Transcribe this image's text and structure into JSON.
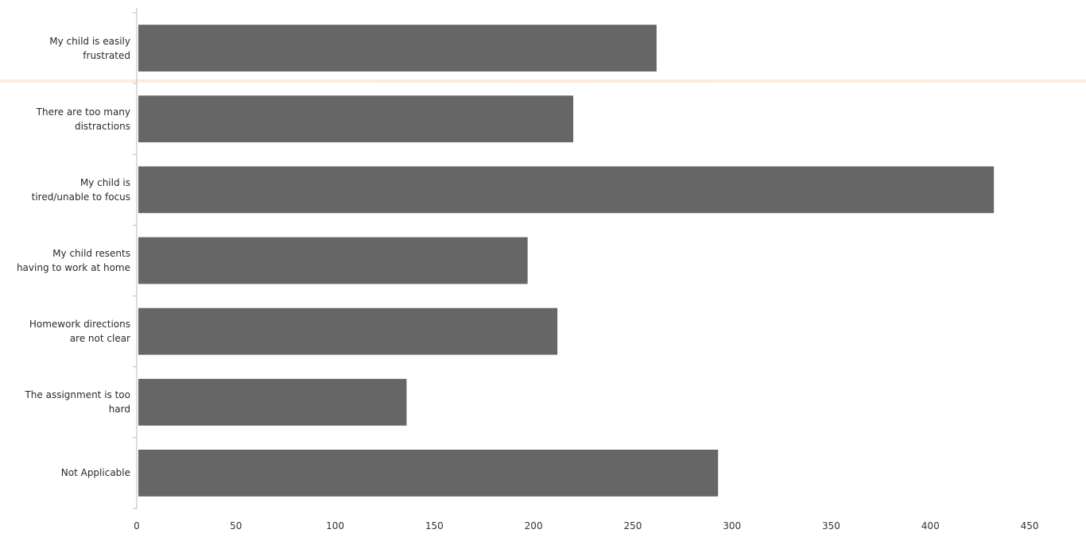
{
  "chart_data": {
    "type": "bar",
    "orientation": "horizontal",
    "categories": [
      "My child is easily frustrated",
      "There are too many distractions",
      "My child is tired/unable to focus",
      "My child resents having to work at home",
      "Homework directions are not clear",
      "The assignment is too hard",
      "Not Applicable"
    ],
    "category_labels": [
      [
        "My child is easily",
        "frustrated"
      ],
      [
        "There are too many",
        "distractions"
      ],
      [
        "My child is",
        "tired/unable to focus"
      ],
      [
        "My child resents",
        "having to work at home"
      ],
      [
        "Homework directions",
        "are not clear"
      ],
      [
        "The assignment is too",
        "hard"
      ],
      [
        "Not Applicable"
      ]
    ],
    "values": [
      262,
      220,
      432,
      197,
      212,
      136,
      293
    ],
    "xlim": [
      0,
      460
    ],
    "xticks": [
      0,
      50,
      100,
      150,
      200,
      250,
      300,
      350,
      400,
      450
    ],
    "title": "",
    "xlabel": "",
    "ylabel": "",
    "grid": false,
    "legend": "none",
    "bar_color": "#666666",
    "axis_color": "#bbbbbb"
  }
}
